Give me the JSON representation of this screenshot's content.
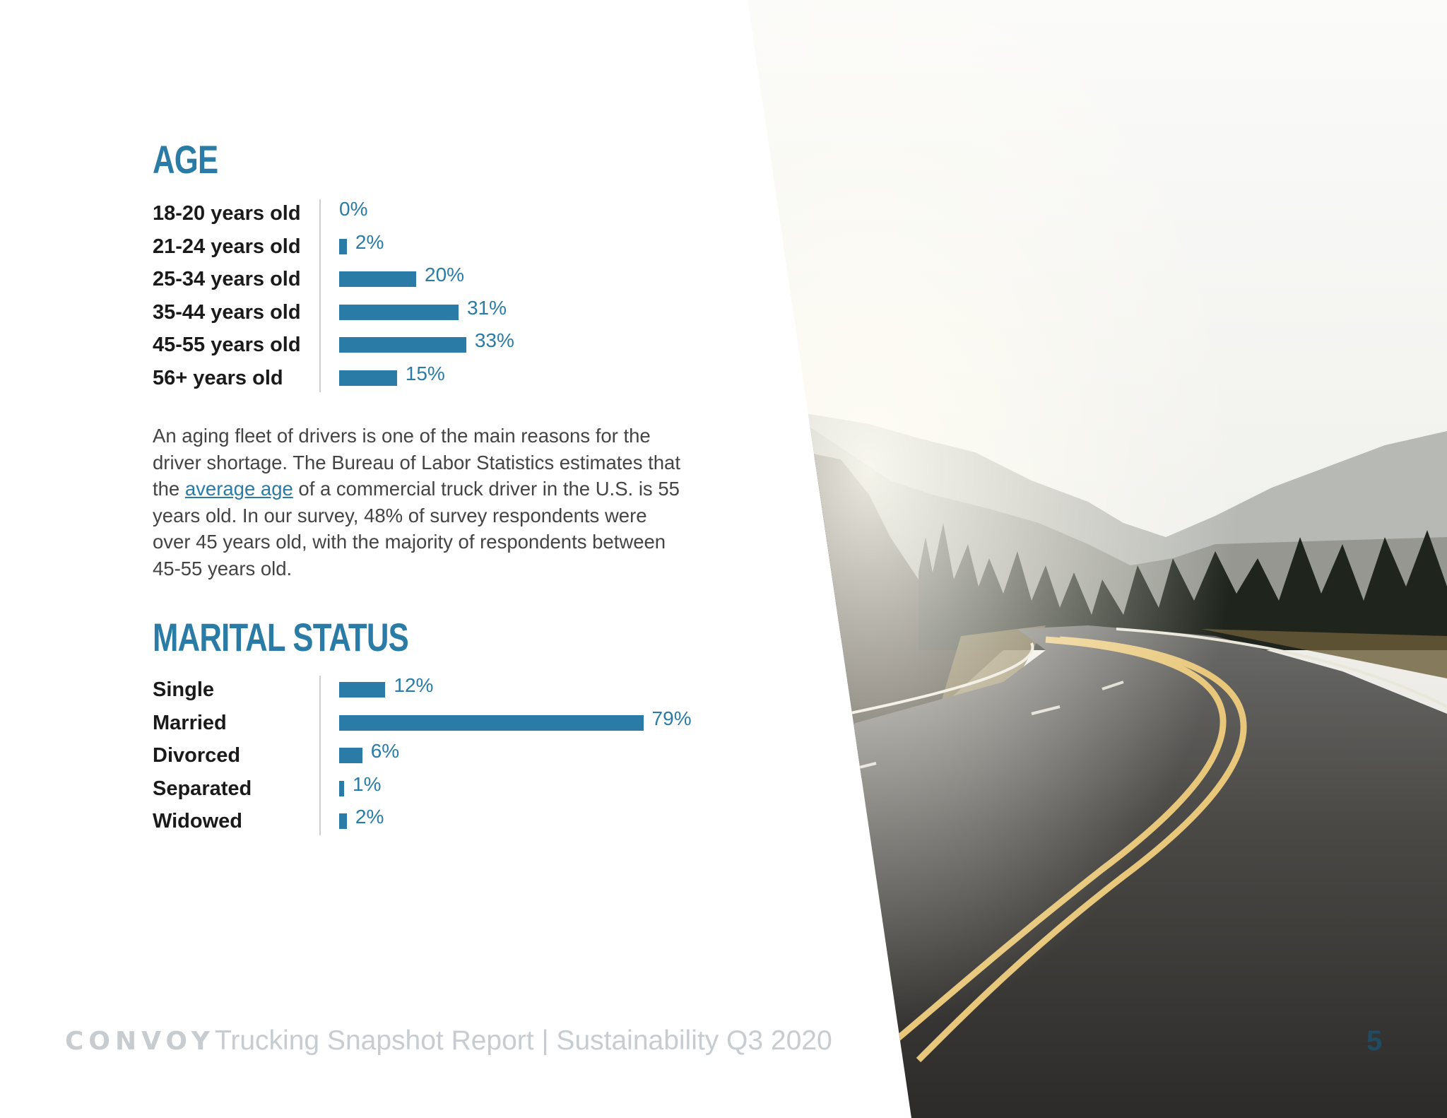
{
  "chart_data": [
    {
      "type": "bar",
      "title": "AGE",
      "categories": [
        "18-20 years old",
        "21-24 years old",
        "25-34 years old",
        "35-44 years old",
        "45-55 years old",
        "56+ years old"
      ],
      "values": [
        0,
        2,
        20,
        31,
        33,
        15
      ],
      "value_labels": [
        "0%",
        "2%",
        "20%",
        "31%",
        "33%",
        "15%"
      ],
      "orientation": "horizontal"
    },
    {
      "type": "bar",
      "title": "MARITAL STATUS",
      "categories": [
        "Single",
        "Married",
        "Divorced",
        "Separated",
        "Widowed"
      ],
      "values": [
        12,
        79,
        6,
        1,
        2
      ],
      "value_labels": [
        "12%",
        "79%",
        "6%",
        "1%",
        "2%"
      ],
      "orientation": "horizontal"
    }
  ],
  "paragraph": {
    "before_link": "An aging fleet of drivers is one of the main reasons for the driver shortage. The Bureau of Labor Statistics estimates that the ",
    "link_text": "average age",
    "after_link": " of a commercial truck driver in the U.S. is 55 years old. In our survey, 48% of survey respondents were over 45 years old, with the majority of respondents between 45-55 years old."
  },
  "footer": {
    "logo": "CONVOY",
    "title": "Trucking Snapshot Report | Sustainability Q3 2020",
    "page_number": "5"
  },
  "colors": {
    "accent": "#2a7ca6",
    "page_number": "#1f4c63",
    "footer_text": "#c7ccd0"
  }
}
